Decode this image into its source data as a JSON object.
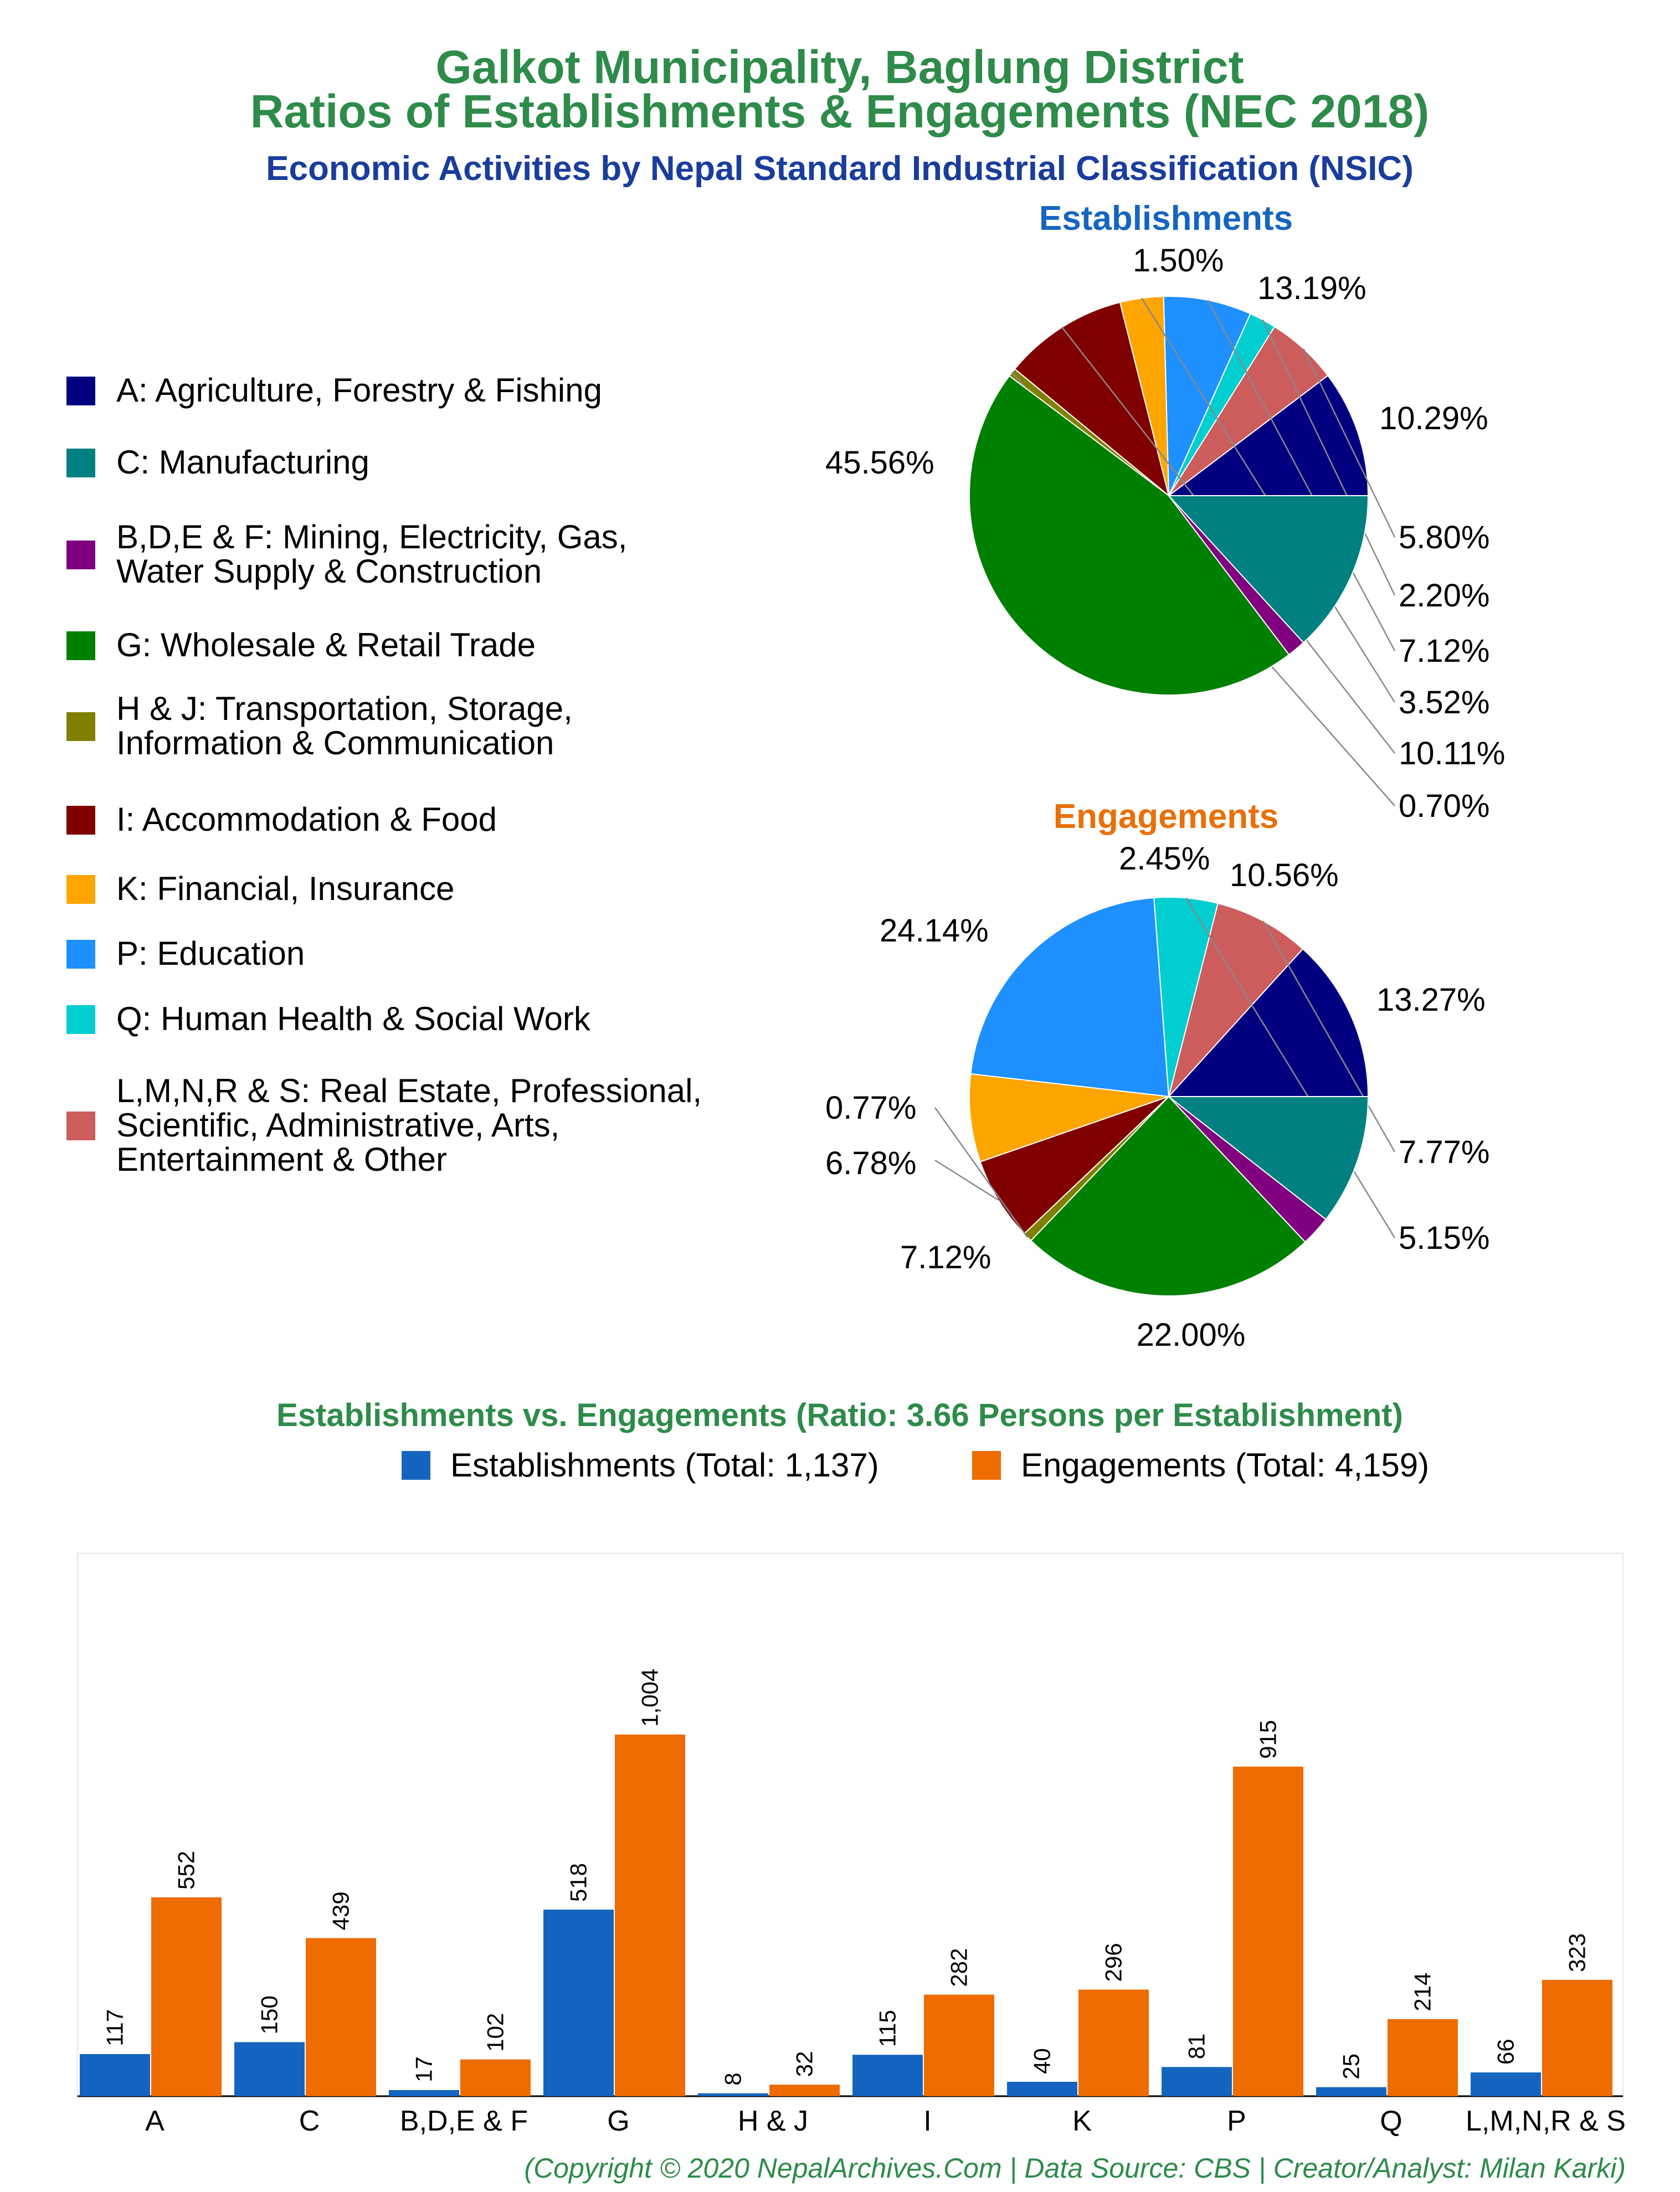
{
  "header": {
    "title_line1": "Galkot Municipality, Baglung District",
    "title_line2": "Ratios of Establishments & Engagements (NEC 2018)",
    "subtitle": "Economic Activities by Nepal Standard Industrial Classification (NSIC)"
  },
  "legend": [
    {
      "line1": "A: Agriculture, Forestry & Fishing",
      "line2": "",
      "line3": "",
      "color": "#000080"
    },
    {
      "line1": "C: Manufacturing",
      "line2": "",
      "line3": "",
      "color": "#008080"
    },
    {
      "line1": "B,D,E & F: Mining, Electricity, Gas,",
      "line2": "Water Supply & Construction",
      "line3": "",
      "color": "#800080"
    },
    {
      "line1": "G: Wholesale & Retail Trade",
      "line2": "",
      "line3": "",
      "color": "#008000"
    },
    {
      "line1": "H & J: Transportation, Storage,",
      "line2": "Information & Communication",
      "line3": "",
      "color": "#808000"
    },
    {
      "line1": "I: Accommodation & Food",
      "line2": "",
      "line3": "",
      "color": "#800000"
    },
    {
      "line1": "K: Financial, Insurance",
      "line2": "",
      "line3": "",
      "color": "#FFA500"
    },
    {
      "line1": "P: Education",
      "line2": "",
      "line3": "",
      "color": "#1E90FF"
    },
    {
      "line1": "Q: Human Health & Social Work",
      "line2": "",
      "line3": "",
      "color": "#00CED1"
    },
    {
      "line1": "L,M,N,R & S: Real Estate, Professional,",
      "line2": "Scientific, Administrative, Arts,",
      "line3": "Entertainment & Other",
      "color": "#CD5C5C"
    }
  ],
  "chart_data": [
    {
      "type": "pie",
      "title": "Establishments",
      "title_color": "#1565C0",
      "slices": [
        {
          "category": "A",
          "value": 10.29,
          "label": "10.29%"
        },
        {
          "category": "L,M,N,R & S",
          "value": 5.8,
          "label": "5.80%"
        },
        {
          "category": "Q",
          "value": 2.2,
          "label": "2.20%"
        },
        {
          "category": "P",
          "value": 7.12,
          "label": "7.12%"
        },
        {
          "category": "K",
          "value": 3.52,
          "label": "3.52%"
        },
        {
          "category": "I",
          "value": 10.11,
          "label": "10.11%"
        },
        {
          "category": "H & J",
          "value": 0.7,
          "label": "0.70%"
        },
        {
          "category": "G",
          "value": 45.56,
          "label": "45.56%"
        },
        {
          "category": "B,D,E & F",
          "value": 1.5,
          "label": "1.50%"
        },
        {
          "category": "C",
          "value": 13.19,
          "label": "13.19%"
        }
      ]
    },
    {
      "type": "pie",
      "title": "Engagements",
      "title_color": "#E8700A",
      "slices": [
        {
          "category": "A",
          "value": 13.27,
          "label": "13.27%"
        },
        {
          "category": "L,M,N,R & S",
          "value": 7.77,
          "label": "7.77%"
        },
        {
          "category": "Q",
          "value": 5.15,
          "label": "5.15%"
        },
        {
          "category": "P",
          "value": 22.0,
          "label": "22.00%"
        },
        {
          "category": "K",
          "value": 7.12,
          "label": "7.12%"
        },
        {
          "category": "I",
          "value": 6.78,
          "label": "6.78%"
        },
        {
          "category": "H & J",
          "value": 0.77,
          "label": "0.77%"
        },
        {
          "category": "G",
          "value": 24.14,
          "label": "24.14%"
        },
        {
          "category": "B,D,E & F",
          "value": 2.45,
          "label": "2.45%"
        },
        {
          "category": "C",
          "value": 10.56,
          "label": "10.56%"
        }
      ]
    },
    {
      "type": "bar",
      "title": "Establishments vs. Engagements (Ratio: 3.66 Persons per Establishment)",
      "categories": [
        "A",
        "C",
        "B,D,E & F",
        "G",
        "H & J",
        "I",
        "K",
        "P",
        "Q",
        "L,M,N,R & S"
      ],
      "series": [
        {
          "name": "Establishments (Total: 1,137)",
          "color": "#1565C0",
          "values": [
            117,
            150,
            17,
            518,
            8,
            115,
            40,
            81,
            25,
            66
          ],
          "labels": [
            "117",
            "150",
            "17",
            "518",
            "8",
            "115",
            "40",
            "81",
            "25",
            "66"
          ]
        },
        {
          "name": "Engagements (Total: 4,159)",
          "color": "#EE6C00",
          "values": [
            552,
            439,
            102,
            1004,
            32,
            282,
            296,
            915,
            214,
            323
          ],
          "labels": [
            "552",
            "439",
            "102",
            "1,004",
            "32",
            "282",
            "296",
            "915",
            "214",
            "323"
          ]
        }
      ],
      "ylim": [
        0,
        1004
      ],
      "grid": false
    }
  ],
  "footer": "(Copyright © 2020 NepalArchives.Com | Data Source: CBS | Creator/Analyst: Milan Karki)"
}
